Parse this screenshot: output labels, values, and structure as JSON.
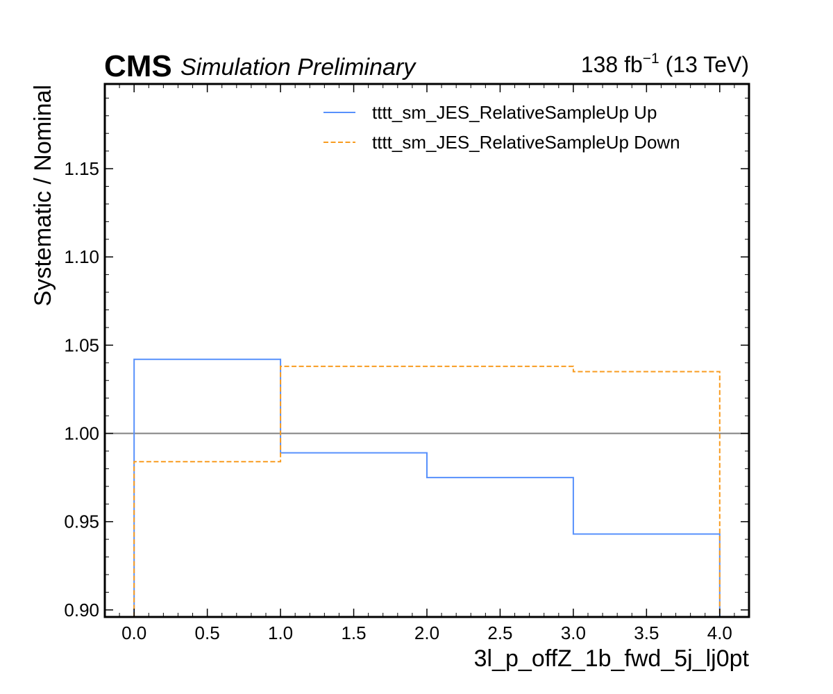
{
  "header": {
    "cms_label": "CMS",
    "status_label": "Simulation Preliminary",
    "lumi_value": "138 fb",
    "lumi_exponent": "−1",
    "energy": " (13 TeV)"
  },
  "chart_data": {
    "type": "line",
    "style": "step-histogram",
    "xlabel": "3l_p_offZ_1b_fwd_5j_lj0pt",
    "ylabel": "Systematic / Nominal",
    "xlim": [
      -0.2,
      4.2
    ],
    "ylim": [
      0.896,
      1.198
    ],
    "xticks": [
      "0.0",
      "0.5",
      "1.0",
      "1.5",
      "2.0",
      "2.5",
      "3.0",
      "3.5",
      "4.0"
    ],
    "yticks": [
      "0.90",
      "0.95",
      "1.00",
      "1.05",
      "1.10",
      "1.15"
    ],
    "bin_edges": [
      0,
      1,
      2,
      3,
      4
    ],
    "reference_line": 1.0,
    "reference_color": "#808080",
    "grid": false,
    "legend_position": "top-right",
    "series": [
      {
        "name": "tttt_sm_JES_RelativeSampleUp Up",
        "values": [
          1.042,
          0.989,
          0.975,
          0.943
        ],
        "color": "#5790fc",
        "dash": "solid"
      },
      {
        "name": "tttt_sm_JES_RelativeSampleUp Down",
        "values": [
          0.984,
          1.038,
          1.038,
          1.035
        ],
        "color": "#f89c20",
        "dash": "dashed"
      }
    ]
  }
}
